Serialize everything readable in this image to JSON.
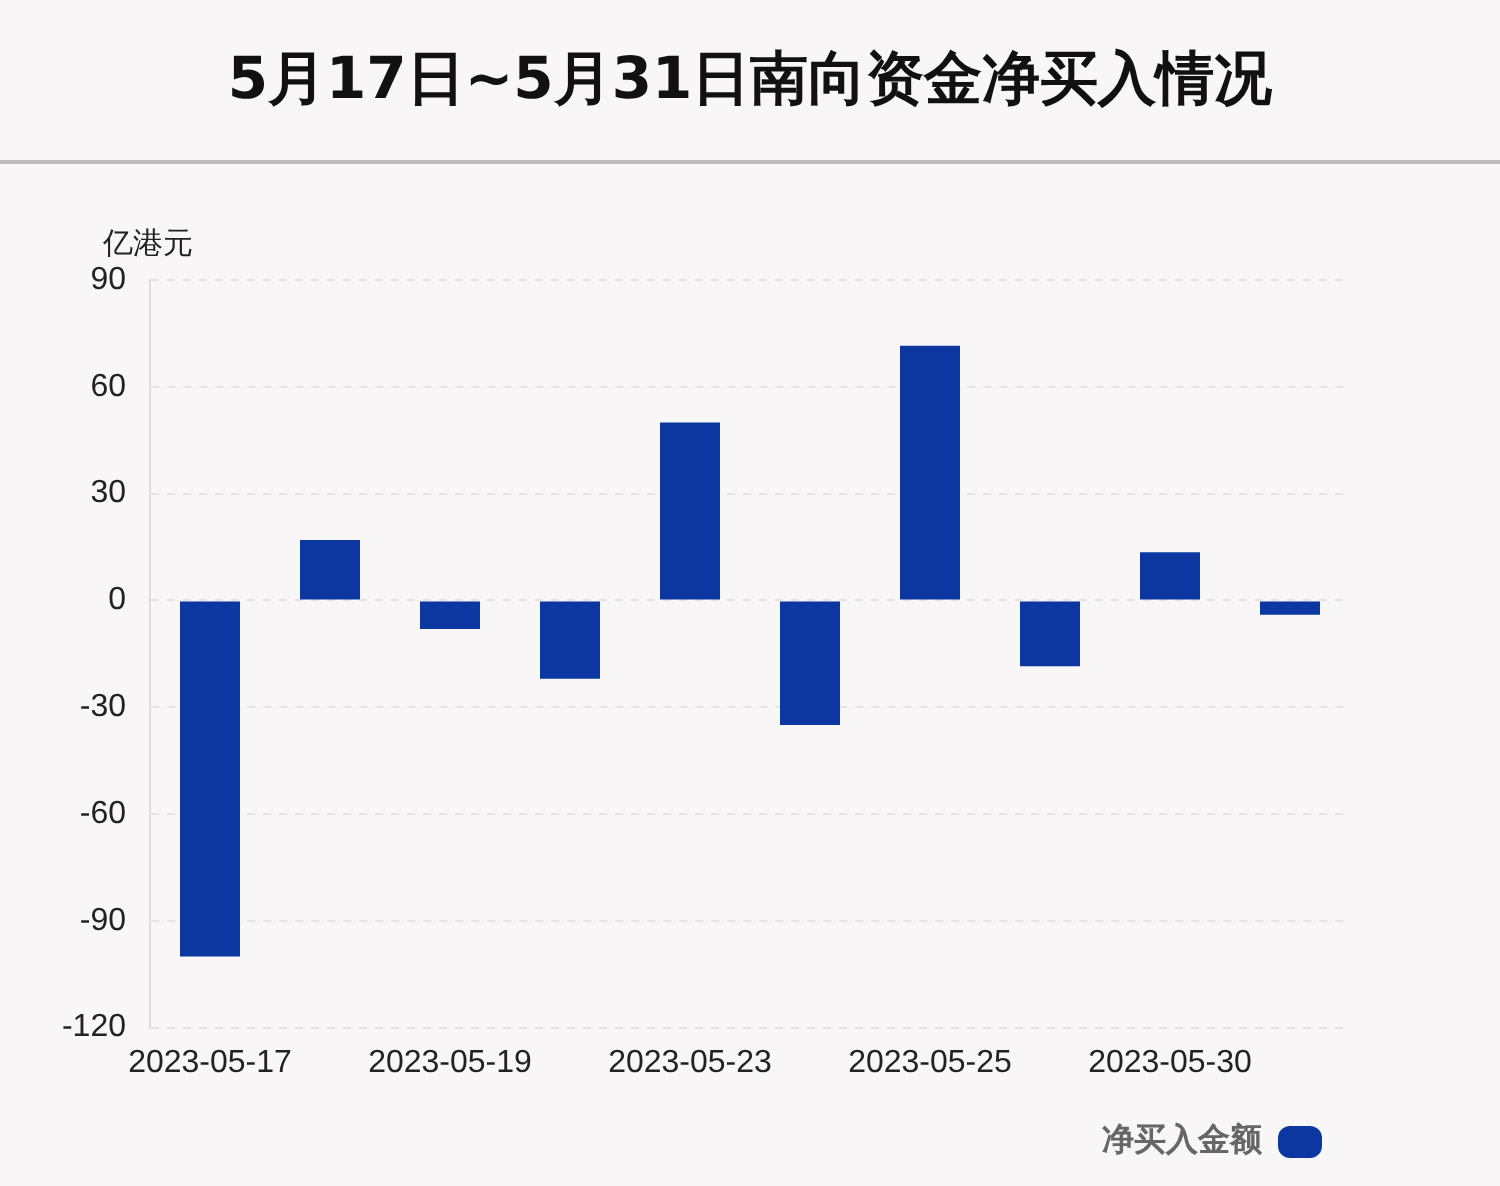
{
  "chart_data": {
    "type": "bar",
    "title": "5月17日~5月31日南向资金净买入情况",
    "ylabel": "亿港元",
    "categories": [
      "2023-05-17",
      null,
      "2023-05-19",
      null,
      "2023-05-23",
      null,
      "2023-05-25",
      null,
      "2023-05-30",
      null
    ],
    "series": [
      {
        "name": "净买入金额",
        "color": "#0d37a0",
        "values": [
          -100,
          17,
          -8,
          -22,
          50,
          -35,
          71.5,
          -18.5,
          13.5,
          -4
        ]
      }
    ],
    "ylim": [
      -120,
      90
    ],
    "yticks": [
      -120,
      -90,
      -60,
      -30,
      0,
      30,
      60,
      90
    ],
    "grid": "y",
    "legend": "bottom right"
  }
}
